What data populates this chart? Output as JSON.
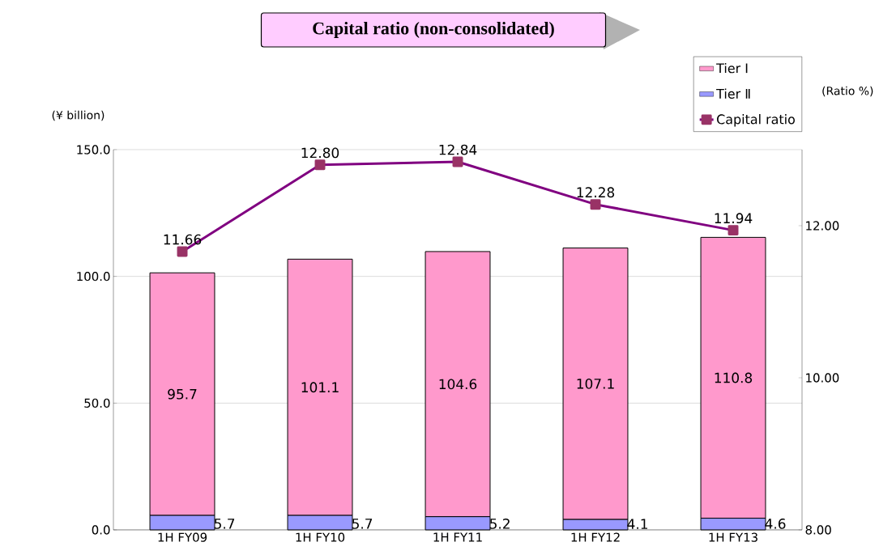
{
  "chart_data": {
    "type": "bar",
    "title": "Capital ratio (non-consolidated)",
    "ylabel": "(¥ billion)",
    "y2label": "(Ratio %)",
    "categories": [
      "1H FY09",
      "1H FY10",
      "1H FY11",
      "1H FY12",
      "1H FY13"
    ],
    "stacked": true,
    "series": [
      {
        "name": "Tier Ⅱ",
        "color": "#9999ff",
        "values": [
          5.7,
          5.7,
          5.2,
          4.1,
          4.6
        ],
        "value_labels": [
          "5.7",
          "5.7",
          "5.2",
          "4.1",
          "4.6"
        ]
      },
      {
        "name": "Tier Ⅰ",
        "color": "#ff99cc",
        "values": [
          95.7,
          101.1,
          104.6,
          107.1,
          110.8
        ],
        "value_labels": [
          "95.7",
          "101.1",
          "104.6",
          "107.1",
          "110.8"
        ]
      },
      {
        "name": "Capital ratio",
        "type": "line",
        "axis": "y2",
        "color": "#800080",
        "marker": "square",
        "values": [
          11.66,
          12.8,
          12.84,
          12.28,
          11.94
        ],
        "value_labels": [
          "11.66",
          "12.80",
          "12.84",
          "12.28",
          "11.94"
        ]
      }
    ],
    "ylim": [
      0,
      150
    ],
    "yticks": [
      {
        "value": 0,
        "label": "0.0"
      },
      {
        "value": 50,
        "label": "50.0"
      },
      {
        "value": 100,
        "label": "100.0"
      },
      {
        "value": 150,
        "label": "150.0"
      }
    ],
    "y2lim": [
      8,
      13
    ],
    "y2ticks": [
      {
        "value": 8,
        "label": "8.00"
      },
      {
        "value": 10,
        "label": "10.00"
      },
      {
        "value": 12,
        "label": "12.00"
      }
    ],
    "grid": "y",
    "legend": "top right"
  }
}
